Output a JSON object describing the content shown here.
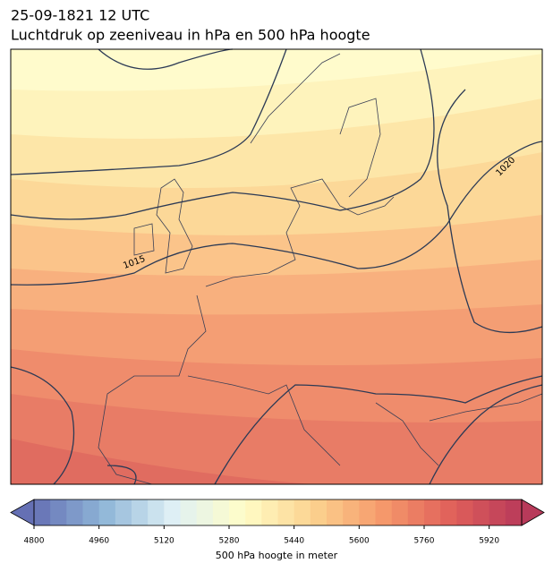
{
  "header": {
    "title": "25-09-1821 12 UTC",
    "subtitle": "Luchtdruk op zeeniveau in hPa en 500 hPa hoogte"
  },
  "map": {
    "isobar_labels": [
      "1015",
      "1020"
    ]
  },
  "colorbar": {
    "label": "500 hPa hoogte in meter",
    "range": [
      4800,
      6000
    ],
    "step": 40,
    "ticks": [
      4800,
      4960,
      5120,
      5280,
      5440,
      5600,
      5760,
      5920
    ],
    "colors": [
      "#6570b4",
      "#8fb6d8",
      "#dff0f5",
      "#fffdc8",
      "#fcd38f",
      "#f5996b",
      "#e0605a",
      "#b83a5a"
    ]
  }
}
